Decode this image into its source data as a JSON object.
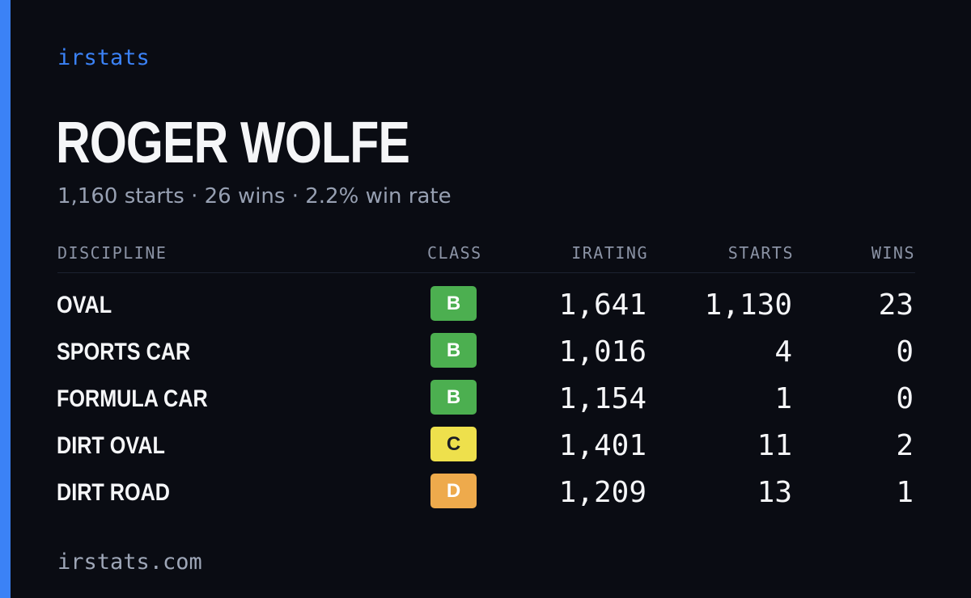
{
  "brand": "irstats",
  "driver": {
    "name": "ROGER WOLFE",
    "summary": "1,160 starts · 26 wins · 2.2% win rate"
  },
  "table": {
    "headers": {
      "discipline": "DISCIPLINE",
      "class": "CLASS",
      "irating": "IRATING",
      "starts": "STARTS",
      "wins": "WINS"
    },
    "rows": [
      {
        "discipline": "OVAL",
        "class": "B",
        "class_color": "#4caf50",
        "irating": "1,641",
        "starts": "1,130",
        "wins": "23"
      },
      {
        "discipline": "SPORTS CAR",
        "class": "B",
        "class_color": "#4caf50",
        "irating": "1,016",
        "starts": "4",
        "wins": "0"
      },
      {
        "discipline": "FORMULA CAR",
        "class": "B",
        "class_color": "#4caf50",
        "irating": "1,154",
        "starts": "1",
        "wins": "0"
      },
      {
        "discipline": "DIRT OVAL",
        "class": "C",
        "class_color": "#eee04c",
        "irating": "1,401",
        "starts": "11",
        "wins": "2"
      },
      {
        "discipline": "DIRT ROAD",
        "class": "D",
        "class_color": "#eeaa4c",
        "irating": "1,209",
        "starts": "13",
        "wins": "1"
      }
    ]
  },
  "footer": "irstats.com",
  "colors": {
    "accent": "#3b82f6",
    "background": "#0a0c13"
  }
}
